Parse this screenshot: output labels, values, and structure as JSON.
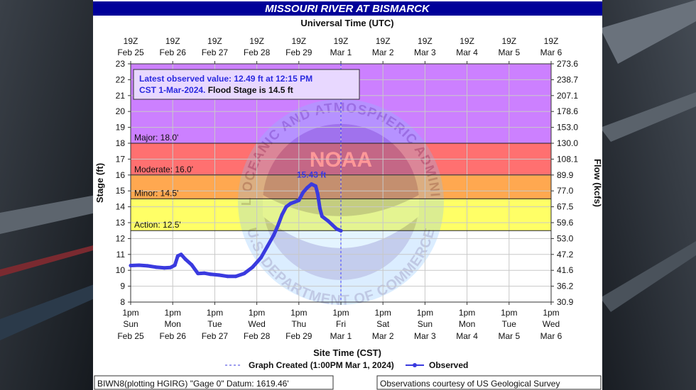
{
  "chart_data": {
    "type": "line",
    "title": "MISSOURI RIVER AT BISMARCK",
    "top_axis_title": "Universal Time (UTC)",
    "bottom_axis_title": "Site Time (CST)",
    "ylabel_left": "Stage (ft)",
    "ylabel_right": "Flow (kcfs)",
    "ylim": [
      8,
      23
    ],
    "xlim": [
      0,
      10
    ],
    "grid": true,
    "top_ticks": [
      {
        "line1": "19Z",
        "line2": "Feb 25"
      },
      {
        "line1": "19Z",
        "line2": "Feb 26"
      },
      {
        "line1": "19Z",
        "line2": "Feb 27"
      },
      {
        "line1": "19Z",
        "line2": "Feb 28"
      },
      {
        "line1": "19Z",
        "line2": "Feb 29"
      },
      {
        "line1": "19Z",
        "line2": "Mar 1"
      },
      {
        "line1": "19Z",
        "line2": "Mar 2"
      },
      {
        "line1": "19Z",
        "line2": "Mar 3"
      },
      {
        "line1": "19Z",
        "line2": "Mar 4"
      },
      {
        "line1": "19Z",
        "line2": "Mar 5"
      },
      {
        "line1": "19Z",
        "line2": "Mar 6"
      }
    ],
    "bottom_ticks": [
      {
        "line1": "1pm",
        "line2": "Sun",
        "line3": "Feb 25"
      },
      {
        "line1": "1pm",
        "line2": "Mon",
        "line3": "Feb 26"
      },
      {
        "line1": "1pm",
        "line2": "Tue",
        "line3": "Feb 27"
      },
      {
        "line1": "1pm",
        "line2": "Wed",
        "line3": "Feb 28"
      },
      {
        "line1": "1pm",
        "line2": "Thu",
        "line3": "Feb 29"
      },
      {
        "line1": "1pm",
        "line2": "Fri",
        "line3": "Mar 1"
      },
      {
        "line1": "1pm",
        "line2": "Sat",
        "line3": "Mar 2"
      },
      {
        "line1": "1pm",
        "line2": "Sun",
        "line3": "Mar 3"
      },
      {
        "line1": "1pm",
        "line2": "Mon",
        "line3": "Mar 4"
      },
      {
        "line1": "1pm",
        "line2": "Tue",
        "line3": "Mar 5"
      },
      {
        "line1": "1pm",
        "line2": "Wed",
        "line3": "Mar 6"
      }
    ],
    "left_ticks": [
      8,
      9,
      10,
      11,
      12,
      13,
      14,
      15,
      16,
      17,
      18,
      19,
      20,
      21,
      22,
      23
    ],
    "right_ticks": [
      "30.9",
      "36.2",
      "41.6",
      "47.2",
      "53.0",
      "59.6",
      "67.5",
      "77.0",
      "89.9",
      "108.1",
      "130.0",
      "153.0",
      "178.6",
      "207.1",
      "238.7",
      "273.6"
    ],
    "zones": [
      {
        "name": "Major: 18.0'",
        "from": 18.0,
        "to": 23,
        "color": "#cc80ff"
      },
      {
        "name": "Moderate: 16.0'",
        "from": 16.0,
        "to": 18.0,
        "color": "#ff7070"
      },
      {
        "name": "Minor: 14.5'",
        "from": 14.5,
        "to": 16.0,
        "color": "#ffa850"
      },
      {
        "name": "Action: 12.5'",
        "from": 12.5,
        "to": 14.5,
        "color": "#ffff66"
      }
    ],
    "series": [
      {
        "name": "Observed",
        "color": "#3a3adf",
        "x": [
          0.0,
          0.2,
          0.4,
          0.6,
          0.8,
          0.95,
          1.05,
          1.12,
          1.2,
          1.3,
          1.45,
          1.6,
          1.75,
          1.9,
          2.1,
          2.3,
          2.5,
          2.7,
          2.9,
          3.1,
          3.25,
          3.4,
          3.5,
          3.6,
          3.7,
          3.8,
          3.9,
          4.0,
          4.1,
          4.2,
          4.3,
          4.4,
          4.45,
          4.5,
          4.55,
          4.6,
          4.7,
          4.8,
          4.9,
          5.0
        ],
        "values": [
          10.3,
          10.32,
          10.28,
          10.2,
          10.15,
          10.18,
          10.32,
          10.9,
          11.0,
          10.7,
          10.35,
          9.8,
          9.82,
          9.75,
          9.7,
          9.62,
          9.62,
          9.8,
          10.2,
          10.8,
          11.5,
          12.2,
          12.8,
          13.5,
          14.0,
          14.2,
          14.3,
          14.4,
          14.9,
          15.2,
          15.43,
          15.3,
          14.8,
          13.9,
          13.4,
          13.3,
          13.1,
          12.85,
          12.6,
          12.49
        ]
      }
    ],
    "peak_label": "15.43 ft",
    "peak_x": 4.3,
    "peak_y": 15.43,
    "graph_created_x": 5.0
  },
  "annotation": {
    "line1": "Latest observed value: 12.49 ft at 12:15 PM",
    "line2_part1": "CST 1-Mar-2024.",
    "line2_part2": "Flood Stage is 14.5 ft"
  },
  "legend": {
    "created": "Graph Created (1:00PM Mar 1, 2024)",
    "observed": "Observed"
  },
  "footer": {
    "left": "BIWN8(plotting HGIRG) \"Gage 0\" Datum: 1619.46'",
    "right": "Observations courtesy of US Geological Survey"
  },
  "watermark": {
    "arc_top": "NATIONAL OCEANIC AND ATMOSPHERIC ADMINISTRATION",
    "arc_bottom": "U.S. DEPARTMENT OF COMMERCE",
    "center": "NOAA"
  }
}
